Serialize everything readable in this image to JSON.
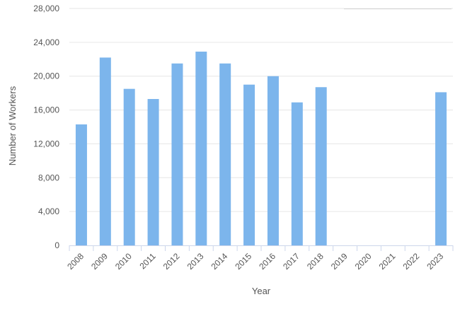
{
  "chart_data": {
    "type": "bar",
    "title": "",
    "xlabel": "Year",
    "ylabel": "Number of Workers",
    "categories": [
      "2008",
      "2009",
      "2010",
      "2011",
      "2012",
      "2013",
      "2014",
      "2015",
      "2016",
      "2017",
      "2018",
      "2019",
      "2020",
      "2021",
      "2022",
      "2023"
    ],
    "values": [
      14300,
      22200,
      18500,
      17300,
      21500,
      22900,
      21500,
      19000,
      20000,
      16900,
      18700,
      null,
      null,
      null,
      null,
      18100
    ],
    "ylim": [
      0,
      28000
    ],
    "yticks": [
      0,
      4000,
      8000,
      12000,
      16000,
      20000,
      24000,
      28000
    ],
    "ytick_labels": [
      "0",
      "4,000",
      "8,000",
      "12,000",
      "16,000",
      "20,000",
      "24,000",
      "28,000"
    ],
    "grid": "horizontal",
    "bar_color": "#7cb5ec",
    "grid_color": "#e6e6e6",
    "axis_color": "#ccd6eb",
    "text_color": "#555555"
  }
}
